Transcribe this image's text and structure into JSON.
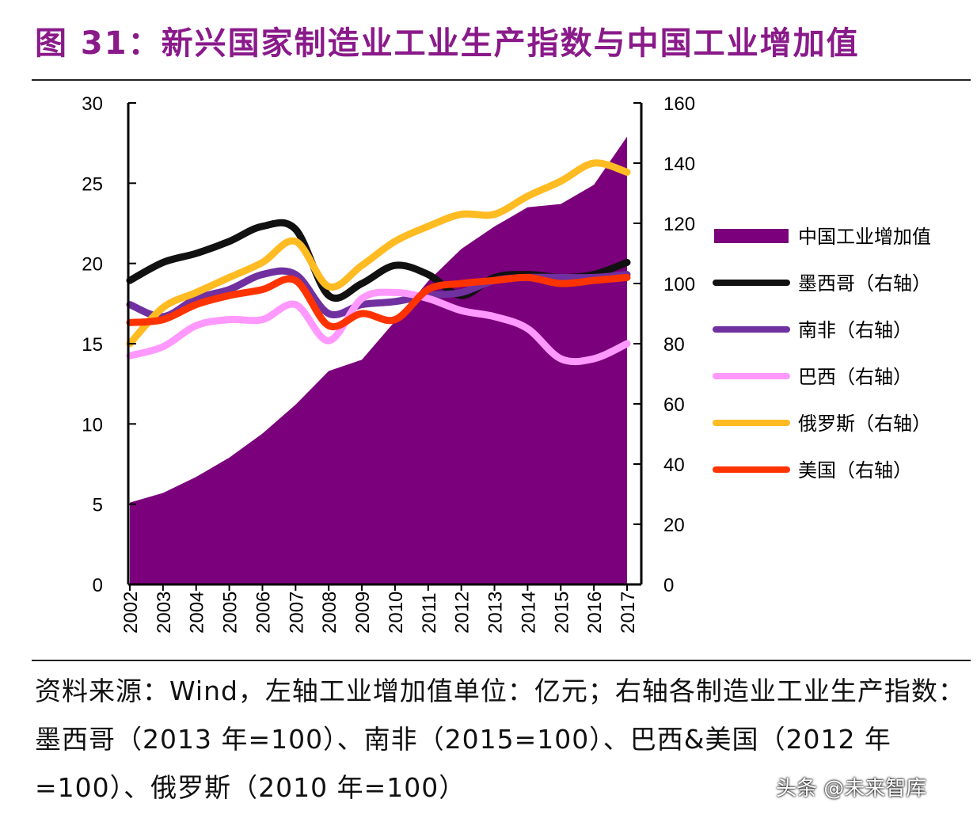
{
  "title": "图 31：新兴国家制造业工业生产指数与中国工业增加值",
  "source": "资料来源：Wind，左轴工业增加值单位：亿元；右轴各制造业工业生产指数：墨西哥（2013 年=100）、南非（2015=100）、巴西&美国（2012 年=100）、俄罗斯（2010 年=100）",
  "watermark": "头条 @未来智库",
  "chart_data": {
    "type": "area+line",
    "categories": [
      "2002",
      "2003",
      "2004",
      "2005",
      "2006",
      "2007",
      "2008",
      "2009",
      "2010",
      "2011",
      "2012",
      "2013",
      "2014",
      "2015",
      "2016",
      "2017"
    ],
    "left_axis": {
      "ylim": [
        0,
        30
      ],
      "ticks": [
        "0",
        "5",
        "10",
        "15",
        "20",
        "25",
        "30"
      ]
    },
    "right_axis": {
      "ylim": [
        0,
        160
      ],
      "ticks": [
        "0",
        "20",
        "40",
        "60",
        "80",
        "100",
        "120",
        "140",
        "160"
      ]
    },
    "legend_position": "right",
    "series": [
      {
        "name": "中国工业增加值",
        "axis": "left",
        "kind": "area",
        "color": "#7b007b",
        "values": [
          5.1,
          5.7,
          6.7,
          7.9,
          9.4,
          11.2,
          13.3,
          14.0,
          16.4,
          18.9,
          20.9,
          22.3,
          23.5,
          23.7,
          24.9,
          27.9
        ]
      },
      {
        "name": "墨西哥（右轴）",
        "axis": "right",
        "kind": "line",
        "color": "#111111",
        "values": [
          101,
          107,
          110,
          114,
          119,
          118,
          96,
          100,
          106,
          103,
          96,
          102,
          103,
          102,
          103,
          107
        ]
      },
      {
        "name": "南非（右轴）",
        "axis": "right",
        "kind": "line",
        "color": "#7030a0",
        "values": [
          93,
          89,
          95,
          98,
          103,
          103,
          90,
          93,
          94,
          96,
          97,
          101,
          102,
          102,
          102,
          103
        ]
      },
      {
        "name": "巴西（右轴）",
        "axis": "right",
        "kind": "line",
        "color": "#ff99ff",
        "values": [
          76,
          79,
          86,
          88,
          88,
          93,
          81,
          95,
          97,
          95,
          91,
          89,
          85,
          75,
          75,
          80
        ]
      },
      {
        "name": "俄罗斯（右轴）",
        "axis": "right",
        "kind": "line",
        "color": "#ffbb22",
        "values": [
          80,
          92,
          97,
          102,
          107,
          114,
          99,
          106,
          114,
          119,
          123,
          123,
          129,
          134,
          140,
          137
        ]
      },
      {
        "name": "美国（右轴）",
        "axis": "right",
        "kind": "line",
        "color": "#ff3300",
        "values": [
          87,
          88,
          93,
          96,
          98,
          101,
          86,
          90,
          88,
          98,
          100,
          101,
          102,
          100,
          101,
          102
        ]
      }
    ]
  }
}
